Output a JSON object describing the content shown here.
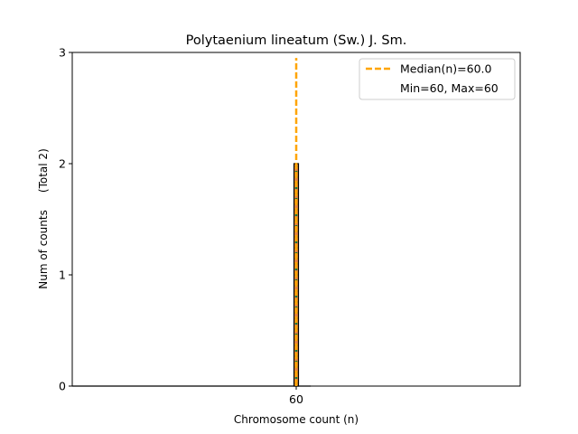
{
  "chart_data": {
    "type": "bar",
    "title": "Polytaenium lineatum (Sw.) J. Sm.",
    "xlabel": "Chromosome count (n)",
    "ylabel": "Num of counts     (Total 2)",
    "categories": [
      "60"
    ],
    "x": [
      60
    ],
    "values": [
      2
    ],
    "xlim": [
      40,
      80
    ],
    "ylim": [
      0,
      3
    ],
    "yticks": [
      0,
      1,
      2,
      3
    ],
    "xticks": [
      60
    ],
    "grid": false,
    "legend_position": "top-right",
    "median": 60.0,
    "min": 60,
    "max": 60,
    "legend": [
      {
        "label": "Median(n)=60.0",
        "style": "dashed",
        "color": "#FFA500"
      },
      {
        "label": "Min=60, Max=60",
        "style": "none"
      }
    ],
    "colors": {
      "bar_fill": "#E8853D",
      "bar_edge": "#000000",
      "bar_dots": "#1B7A3A",
      "median_line": "#FFA500"
    }
  }
}
